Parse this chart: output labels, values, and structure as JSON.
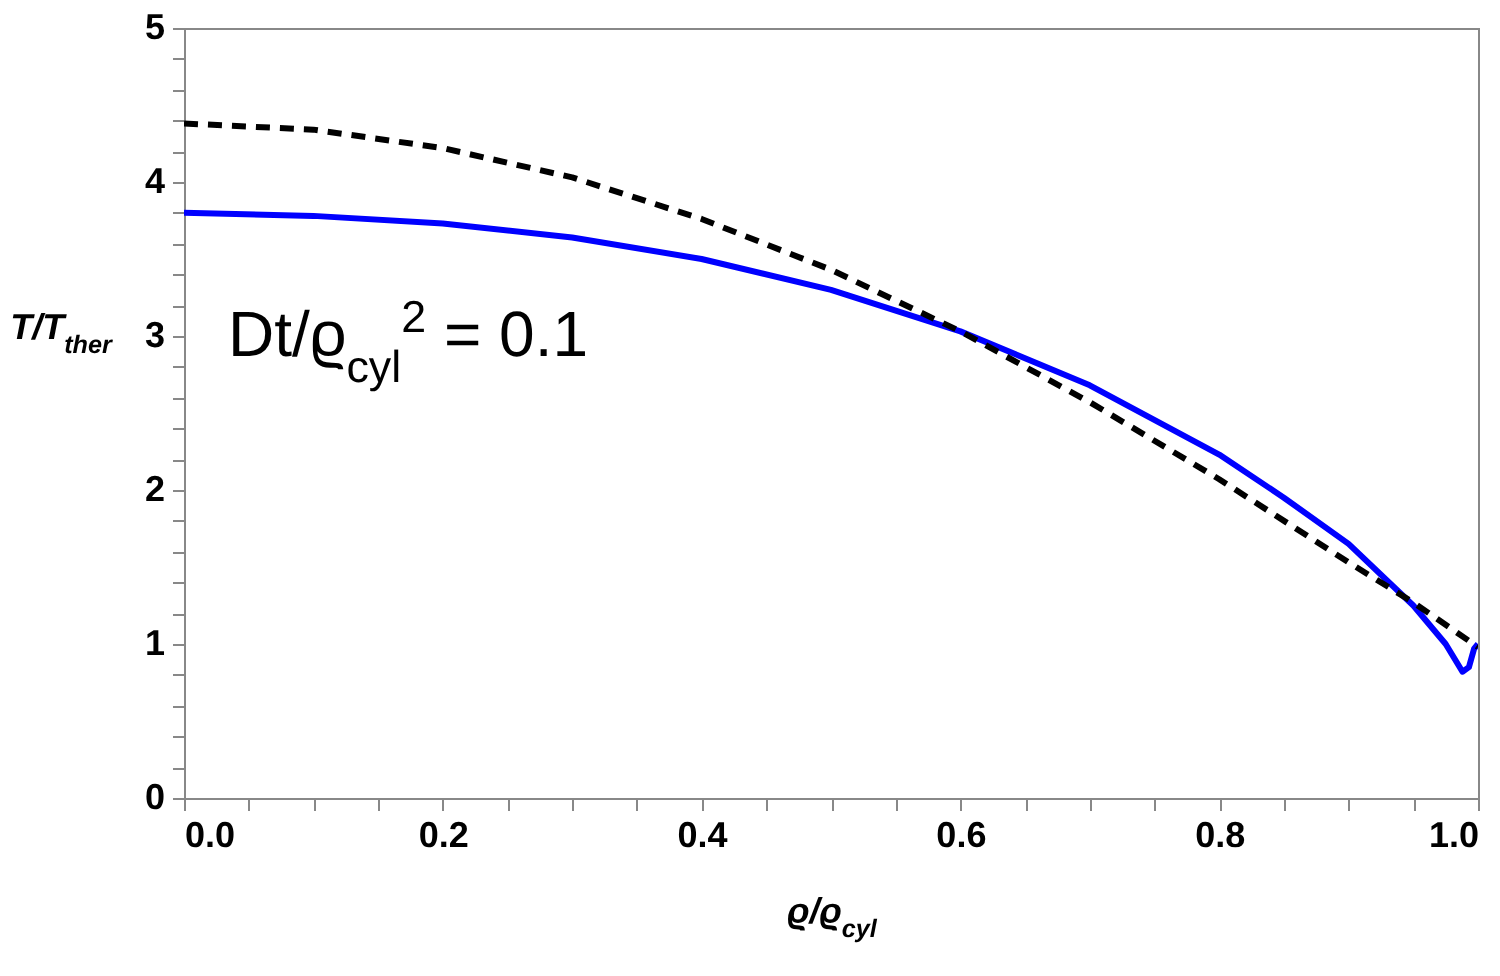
{
  "chart_data": {
    "type": "line",
    "xlabel": "ϱ/ϱ$_{cyl}$",
    "ylabel": "T/T$_{ther}$",
    "annotations": [
      "Dt/ϱ$_{cyl}$$^{2}$ = 0.1"
    ],
    "series": [
      {
        "color": "#0000ff",
        "line_style": "solid",
        "x": [
          0,
          0.1,
          0.2,
          0.3,
          0.4,
          0.5,
          0.6,
          0.7,
          0.8,
          0.85,
          0.9,
          0.95,
          0.975,
          0.988,
          0.993,
          0.997,
          1.0
        ],
        "values": [
          3.8,
          3.78,
          3.73,
          3.64,
          3.5,
          3.3,
          3.03,
          2.68,
          2.23,
          1.95,
          1.65,
          1.25,
          1.0,
          0.82,
          0.85,
          0.97,
          1.0
        ]
      },
      {
        "color": "#000000",
        "line_style": "dashed",
        "x": [
          0,
          0.1,
          0.2,
          0.3,
          0.4,
          0.5,
          0.6,
          0.7,
          0.8,
          0.9,
          0.95,
          1.0
        ],
        "values": [
          4.38,
          4.34,
          4.22,
          4.03,
          3.76,
          3.43,
          3.03,
          2.57,
          2.07,
          1.53,
          1.27,
          0.98
        ]
      }
    ],
    "xlim": [
      0,
      1.0
    ],
    "ylim": [
      0,
      5
    ],
    "xticks": [
      {
        "value": 0,
        "label": "0.0"
      },
      {
        "value": 0.05,
        "label": null
      },
      {
        "value": 0.1,
        "label": null
      },
      {
        "value": 0.15,
        "label": null
      },
      0.2,
      {
        "value": 0.25,
        "label": null
      },
      {
        "value": 0.3,
        "label": null
      },
      {
        "value": 0.35,
        "label": null
      },
      0.4,
      {
        "value": 0.45,
        "label": null
      },
      {
        "value": 0.5,
        "label": null
      },
      {
        "value": 0.55,
        "label": null
      },
      0.6,
      {
        "value": 0.65,
        "label": null
      },
      {
        "value": 0.7,
        "label": null
      },
      {
        "value": 0.75,
        "label": null
      },
      0.8,
      {
        "value": 0.85,
        "label": null
      },
      {
        "value": 0.9,
        "label": null
      },
      {
        "value": 0.95,
        "label": null
      },
      {
        "value": 1.0,
        "label": "1.0"
      }
    ],
    "yticks": [
      0,
      {
        "value": 0.2,
        "label": null
      },
      {
        "value": 0.4,
        "label": null
      },
      {
        "value": 0.6,
        "label": null
      },
      {
        "value": 0.8,
        "label": null
      },
      1,
      {
        "value": 1.2,
        "label": null
      },
      {
        "value": 1.4,
        "label": null
      },
      {
        "value": 1.6,
        "label": null
      },
      {
        "value": 1.8,
        "label": null
      },
      2,
      {
        "value": 2.2,
        "label": null
      },
      {
        "value": 2.4,
        "label": null
      },
      {
        "value": 2.6,
        "label": null
      },
      {
        "value": 2.8,
        "label": null
      },
      3,
      {
        "value": 3.2,
        "label": null
      },
      {
        "value": 3.4,
        "label": null
      },
      {
        "value": 3.6,
        "label": null
      },
      {
        "value": 3.8,
        "label": null
      },
      4,
      {
        "value": 4.2,
        "label": null
      },
      {
        "value": 4.4,
        "label": null
      },
      {
        "value": 4.6,
        "label": null
      },
      {
        "value": 4.8,
        "label": null
      },
      5
    ],
    "grid": false
  }
}
